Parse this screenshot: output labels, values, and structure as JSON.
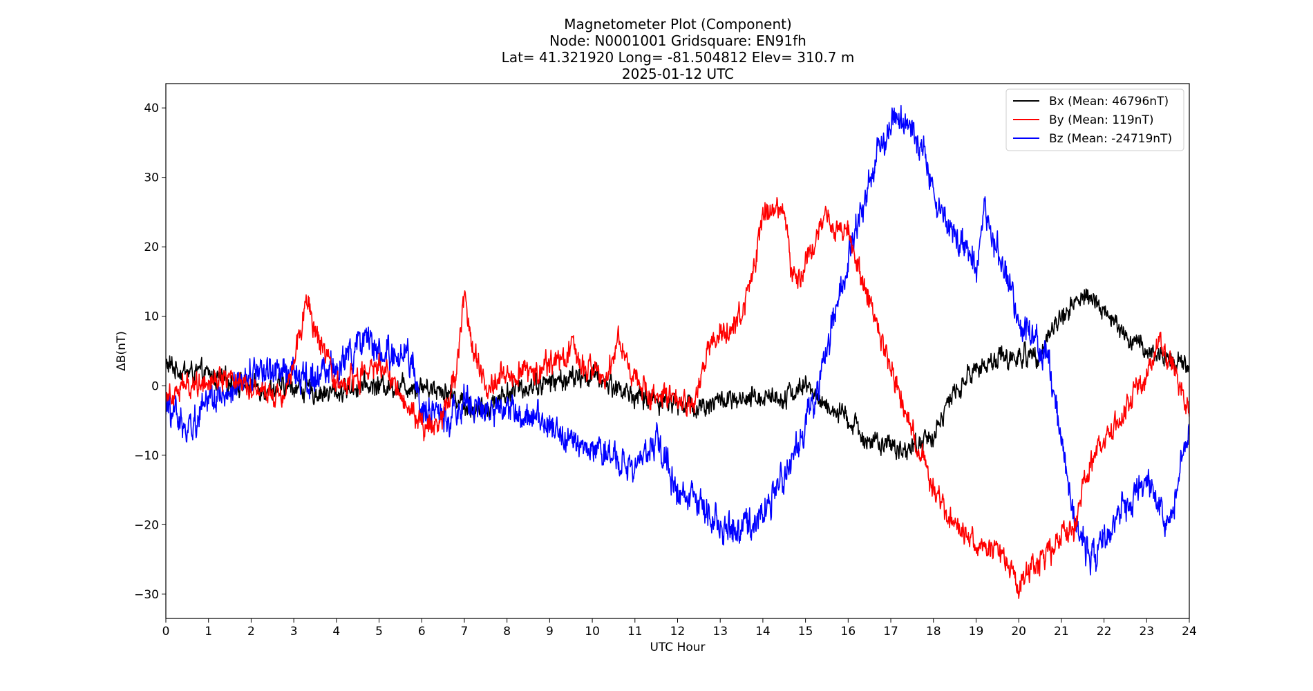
{
  "chart_data": {
    "type": "line",
    "title": [
      "Magnetometer Plot (Component)",
      "Node:  N0001001     Gridsquare:  EN91fh",
      "Lat= 41.321920    Long= -81.504812    Elev= 310.7 m",
      "2025-01-12  UTC"
    ],
    "xlabel": "UTC Hour",
    "ylabel": "ΔB(nT)",
    "xlim": [
      0,
      24
    ],
    "ylim": [
      -33.5,
      43.5
    ],
    "xticks": [
      0,
      1,
      2,
      3,
      4,
      5,
      6,
      7,
      8,
      9,
      10,
      11,
      12,
      13,
      14,
      15,
      16,
      17,
      18,
      19,
      20,
      21,
      22,
      23,
      24
    ],
    "yticks": [
      -30,
      -20,
      -10,
      0,
      10,
      20,
      30,
      40
    ],
    "ytick_labels": [
      "−30",
      "−20",
      "−10",
      "0",
      "10",
      "20",
      "30",
      "40"
    ],
    "grid": false,
    "legend_position": "top-right",
    "series": [
      {
        "name": "Bx (Mean: 46796nT)",
        "color": "#000000",
        "noise": 1.3,
        "x": [
          0,
          0.5,
          1,
          1.5,
          2,
          2.5,
          3,
          3.5,
          4,
          4.5,
          5,
          5.5,
          6,
          6.5,
          7,
          7.3,
          7.5,
          8,
          8.5,
          9,
          9.5,
          10,
          10.5,
          11,
          11.5,
          12,
          12.5,
          13,
          13.5,
          14,
          14.5,
          15,
          15.5,
          16,
          16.5,
          17,
          17.5,
          17.8,
          18,
          18.5,
          19,
          19.5,
          20,
          20.5,
          21,
          21.3,
          21.5,
          22,
          22.5,
          23,
          23.5,
          24
        ],
        "y": [
          3,
          2,
          1.5,
          0.5,
          0,
          -0.5,
          0,
          -1,
          -1,
          0,
          0,
          0,
          0,
          -0.5,
          -2.5,
          -4,
          -3,
          -1,
          0,
          0.5,
          1,
          1.5,
          0,
          -1.5,
          -2,
          -2.5,
          -3,
          -2,
          -2.5,
          -1.5,
          -1.5,
          0,
          -3,
          -5,
          -8,
          -9,
          -9,
          -8,
          -7,
          -1,
          2.5,
          4,
          4,
          5,
          10,
          12,
          13,
          11,
          7,
          5,
          4,
          3
        ]
      },
      {
        "name": "By (Mean: 119nT)",
        "color": "#ff0000",
        "noise": 1.5,
        "x": [
          0,
          0.5,
          1,
          1.5,
          2,
          2.5,
          2.8,
          3,
          3.3,
          3.6,
          4,
          4.5,
          5,
          5.5,
          5.9,
          6.2,
          6.5,
          6.8,
          7,
          7.2,
          7.5,
          8,
          8.5,
          9,
          9.5,
          10,
          10.3,
          10.6,
          10.9,
          11.3,
          11.8,
          12.4,
          12.7,
          13,
          13.5,
          13.8,
          14,
          14.3,
          14.5,
          14.7,
          15,
          15.3,
          15.5,
          16,
          16.3,
          16.8,
          17.3,
          17.7,
          18,
          18.5,
          19,
          19.5,
          20,
          20.3,
          20.8,
          21,
          21.3,
          21.6,
          22,
          22.5,
          23,
          23.3,
          23.6,
          24
        ],
        "y": [
          -1,
          0,
          1,
          1.5,
          0,
          -1,
          -1,
          4,
          12,
          6,
          0,
          1,
          3,
          -1,
          -5,
          -6,
          -4,
          2,
          13,
          5,
          0,
          2,
          2,
          3,
          5,
          2,
          1,
          7,
          2,
          -1,
          -2,
          -3,
          5,
          7,
          10,
          17,
          24,
          26,
          26,
          15,
          18,
          22,
          24,
          22,
          16,
          6,
          -3,
          -10,
          -15,
          -20,
          -23,
          -24,
          -28,
          -26,
          -24,
          -22,
          -20,
          -12,
          -8,
          -4,
          2,
          6,
          3,
          -4
        ]
      },
      {
        "name": "Bz (Mean: -24719nT)",
        "color": "#0000ff",
        "noise": 1.9,
        "x": [
          0,
          0.3,
          0.6,
          1,
          1.5,
          2,
          2.5,
          3,
          3.5,
          4,
          4.5,
          5,
          5.5,
          5.8,
          6,
          6.5,
          7,
          7.5,
          8,
          8.5,
          9,
          9.5,
          10,
          10.5,
          11,
          11.5,
          12,
          12.5,
          13,
          13.5,
          14,
          14.5,
          15,
          15.3,
          15.6,
          16,
          16.3,
          16.6,
          17,
          17.5,
          17.8,
          18,
          18.5,
          19,
          19.2,
          19.5,
          19.8,
          20,
          20.3,
          20.7,
          21,
          21.3,
          21.5,
          21.7,
          22,
          22.5,
          23,
          23.5,
          24
        ],
        "y": [
          -3,
          -5,
          -6,
          -1,
          -2,
          2,
          2,
          2,
          1,
          2,
          6,
          5,
          4,
          3,
          -3,
          -5,
          -2,
          -4,
          -3,
          -4,
          -6,
          -8,
          -9,
          -10,
          -12,
          -8,
          -15,
          -17,
          -20,
          -21,
          -18,
          -13,
          -6,
          0,
          8,
          18,
          25,
          32,
          38,
          37,
          33,
          27,
          22,
          17,
          25,
          20,
          14,
          9,
          7,
          3,
          -8,
          -18,
          -23,
          -25,
          -22,
          -17,
          -14,
          -20,
          -6
        ]
      }
    ]
  }
}
